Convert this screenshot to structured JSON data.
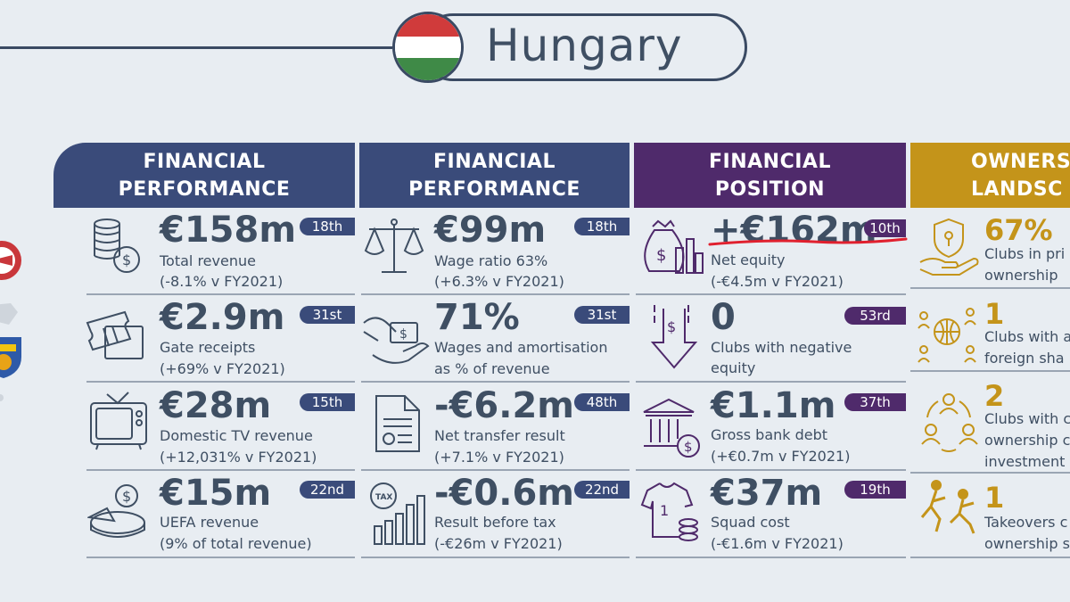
{
  "title": "Hungary",
  "flag_colors": [
    "#d03b3b",
    "#ffffff",
    "#3f8a47"
  ],
  "headers": [
    {
      "line1": "FINANCIAL",
      "line2": "PERFORMANCE"
    },
    {
      "line1": "FINANCIAL",
      "line2": "PERFORMANCE"
    },
    {
      "line1": "FINANCIAL",
      "line2": "POSITION"
    },
    {
      "line1": "OWNERS",
      "line2": "LANDSC"
    }
  ],
  "col1": [
    {
      "value": "€158m",
      "rank": "18th",
      "label1": "Total revenue",
      "label2": "(-8.1% v FY2021)",
      "icon": "coins-icon"
    },
    {
      "value": "€2.9m",
      "rank": "31st",
      "label1": "Gate receipts",
      "label2": "(+69% v FY2021)",
      "icon": "tickets-icon"
    },
    {
      "value": "€28m",
      "rank": "15th",
      "label1": "Domestic TV revenue",
      "label2": "(+12,031% v FY2021)",
      "icon": "tv-icon"
    },
    {
      "value": "€15m",
      "rank": "22nd",
      "label1": "UEFA revenue",
      "label2": "(9% of total revenue)",
      "icon": "pie-coin-icon"
    }
  ],
  "col2": [
    {
      "value": "€99m",
      "rank": "18th",
      "label1": "Wage ratio 63%",
      "label2": "(+6.3% v FY2021)",
      "icon": "scales-icon"
    },
    {
      "value": "71%",
      "rank": "31st",
      "label1": "Wages and amortisation",
      "label2": "as % of revenue",
      "icon": "hand-money-icon"
    },
    {
      "value": "-€6.2m",
      "rank": "48th",
      "label1": "Net transfer result",
      "label2": "(+7.1% v FY2021)",
      "icon": "document-icon"
    },
    {
      "value": "-€0.6m",
      "rank": "22nd",
      "label1": "Result before tax",
      "label2": "(-€26m v FY2021)",
      "icon": "tax-chart-icon"
    }
  ],
  "col3": [
    {
      "value": "+€162m",
      "rank": "10th",
      "label1": "Net equity",
      "label2": "(-€4.5m v FY2021)",
      "icon": "money-bag-icon"
    },
    {
      "value": "0",
      "rank": "53rd",
      "label1": "Clubs with negative",
      "label2": "equity",
      "icon": "down-arrow-icon"
    },
    {
      "value": "€1.1m",
      "rank": "37th",
      "label1": "Gross bank debt",
      "label2": "(+€0.7m v FY2021)",
      "icon": "bank-icon"
    },
    {
      "value": "€37m",
      "rank": "19th",
      "label1": "Squad cost",
      "label2": "(-€1.6m v FY2021)",
      "icon": "shirt-icon"
    }
  ],
  "col4": [
    {
      "value": "67%",
      "label1": "Clubs in pri",
      "label2": "ownership",
      "label3": "",
      "icon": "shield-hand-icon"
    },
    {
      "value": "1",
      "label1": "Clubs with a",
      "label2": "foreign sha",
      "label3": "",
      "icon": "globe-people-icon"
    },
    {
      "value": "2",
      "label1": "Clubs with c",
      "label2": "ownership c",
      "label3": "investment",
      "icon": "cycle-people-icon"
    },
    {
      "value": "1",
      "label1": "Takeovers c",
      "label2": "ownership s",
      "label3": "",
      "icon": "players-icon"
    }
  ],
  "colors": {
    "navy": "#3a4b7a",
    "purple": "#4f2a6b",
    "gold": "#c4941a",
    "text": "#3f4f63",
    "highlight_red": "#e0202e"
  }
}
